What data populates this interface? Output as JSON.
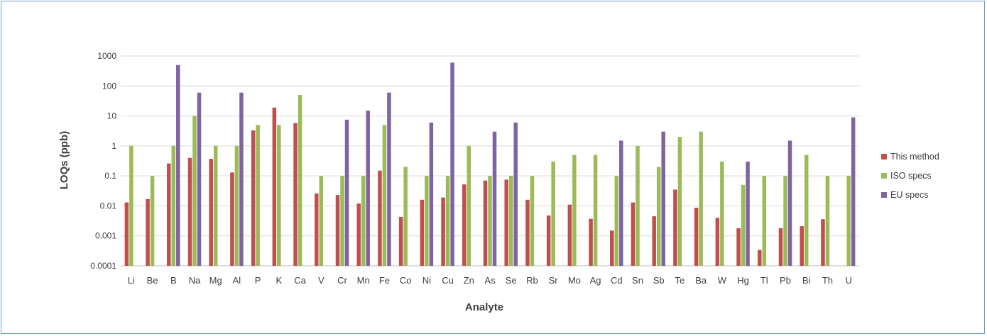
{
  "chart_data": {
    "type": "bar",
    "xlabel": "Analyte",
    "ylabel": "LOQs (ppb)",
    "yscale": "log",
    "ylim": [
      0.0001,
      1000
    ],
    "yticks": [
      "1000",
      "100",
      "10",
      "1",
      "0.1",
      "0.01",
      "0.001",
      "0.0001"
    ],
    "grid": true,
    "legend_position": "right",
    "categories": [
      "Li",
      "Be",
      "B",
      "Na",
      "Mg",
      "Al",
      "P",
      "K",
      "Ca",
      "V",
      "Cr",
      "Mn",
      "Fe",
      "Co",
      "Ni",
      "Cu",
      "Zn",
      "As",
      "Se",
      "Rb",
      "Sr",
      "Mo",
      "Ag",
      "Cd",
      "Sn",
      "Sb",
      "Te",
      "Ba",
      "W",
      "Hg",
      "Tl",
      "Pb",
      "Bi",
      "Th",
      "U"
    ],
    "series": [
      {
        "name": "This method",
        "color": "#c0504d",
        "values": [
          0.013,
          0.017,
          0.26,
          0.4,
          0.37,
          0.13,
          3.3,
          19,
          5.8,
          0.026,
          0.023,
          0.012,
          0.15,
          0.0043,
          0.016,
          0.019,
          0.052,
          0.07,
          0.075,
          0.016,
          0.0048,
          0.011,
          0.0037,
          0.0015,
          0.013,
          0.0045,
          0.035,
          0.0087,
          0.004,
          0.0018,
          0.00034,
          0.0018,
          0.0021,
          0.0036,
          null
        ]
      },
      {
        "name": "ISO specs",
        "color": "#9bbb59",
        "values": [
          1,
          0.1,
          1,
          10,
          1,
          1,
          5,
          5,
          50,
          0.1,
          0.1,
          0.1,
          5,
          0.2,
          0.1,
          0.1,
          1,
          0.1,
          0.1,
          0.1,
          0.3,
          0.5,
          0.5,
          0.1,
          1,
          0.2,
          2,
          3,
          0.3,
          0.05,
          0.1,
          0.1,
          0.5,
          0.1,
          0.1
        ]
      },
      {
        "name": "EU specs",
        "color": "#8064a2",
        "values": [
          null,
          null,
          500,
          60,
          null,
          60,
          null,
          null,
          null,
          null,
          7.5,
          15,
          60,
          null,
          6,
          600,
          null,
          3,
          6,
          null,
          null,
          null,
          null,
          1.5,
          null,
          3,
          null,
          null,
          null,
          0.3,
          null,
          1.5,
          null,
          null,
          9
        ]
      }
    ]
  }
}
